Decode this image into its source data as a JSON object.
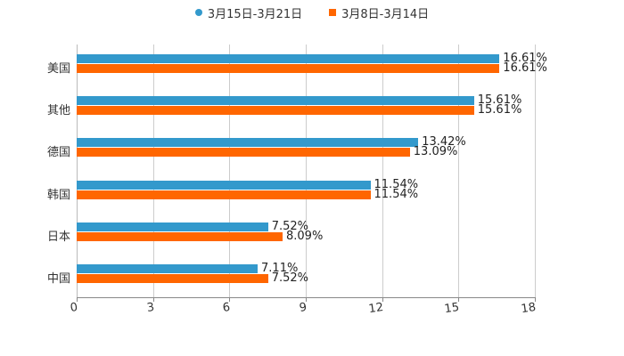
{
  "chart_data": {
    "type": "bar",
    "orientation": "horizontal",
    "title": "",
    "xlabel": "",
    "ylabel": "",
    "xlim": [
      0,
      18
    ],
    "xticks": [
      "0",
      "3",
      "6",
      "9",
      "12",
      "15",
      "18"
    ],
    "grid": true,
    "legend_position": "top",
    "categories": [
      "美国",
      "其他",
      "德国",
      "韩国",
      "日本",
      "中国"
    ],
    "series": [
      {
        "name": "3月15日-3月21日",
        "color": "#3399cc",
        "marker": "circle",
        "values": [
          16.61,
          15.61,
          13.42,
          11.54,
          7.52,
          7.11
        ],
        "labels": [
          "16.61%",
          "15.61%",
          "13.42%",
          "11.54%",
          "7.52%",
          "7.11%"
        ]
      },
      {
        "name": "3月8日-3月14日",
        "color": "#ff6600",
        "marker": "square",
        "values": [
          16.61,
          15.61,
          13.09,
          11.54,
          8.09,
          7.52
        ],
        "labels": [
          "16.61%",
          "15.61%",
          "13.09%",
          "11.54%",
          "8.09%",
          "7.52%"
        ]
      }
    ]
  },
  "legend": {
    "items": [
      {
        "label": "3月15日-3月21日"
      },
      {
        "label": "3月8日-3月14日"
      }
    ]
  }
}
